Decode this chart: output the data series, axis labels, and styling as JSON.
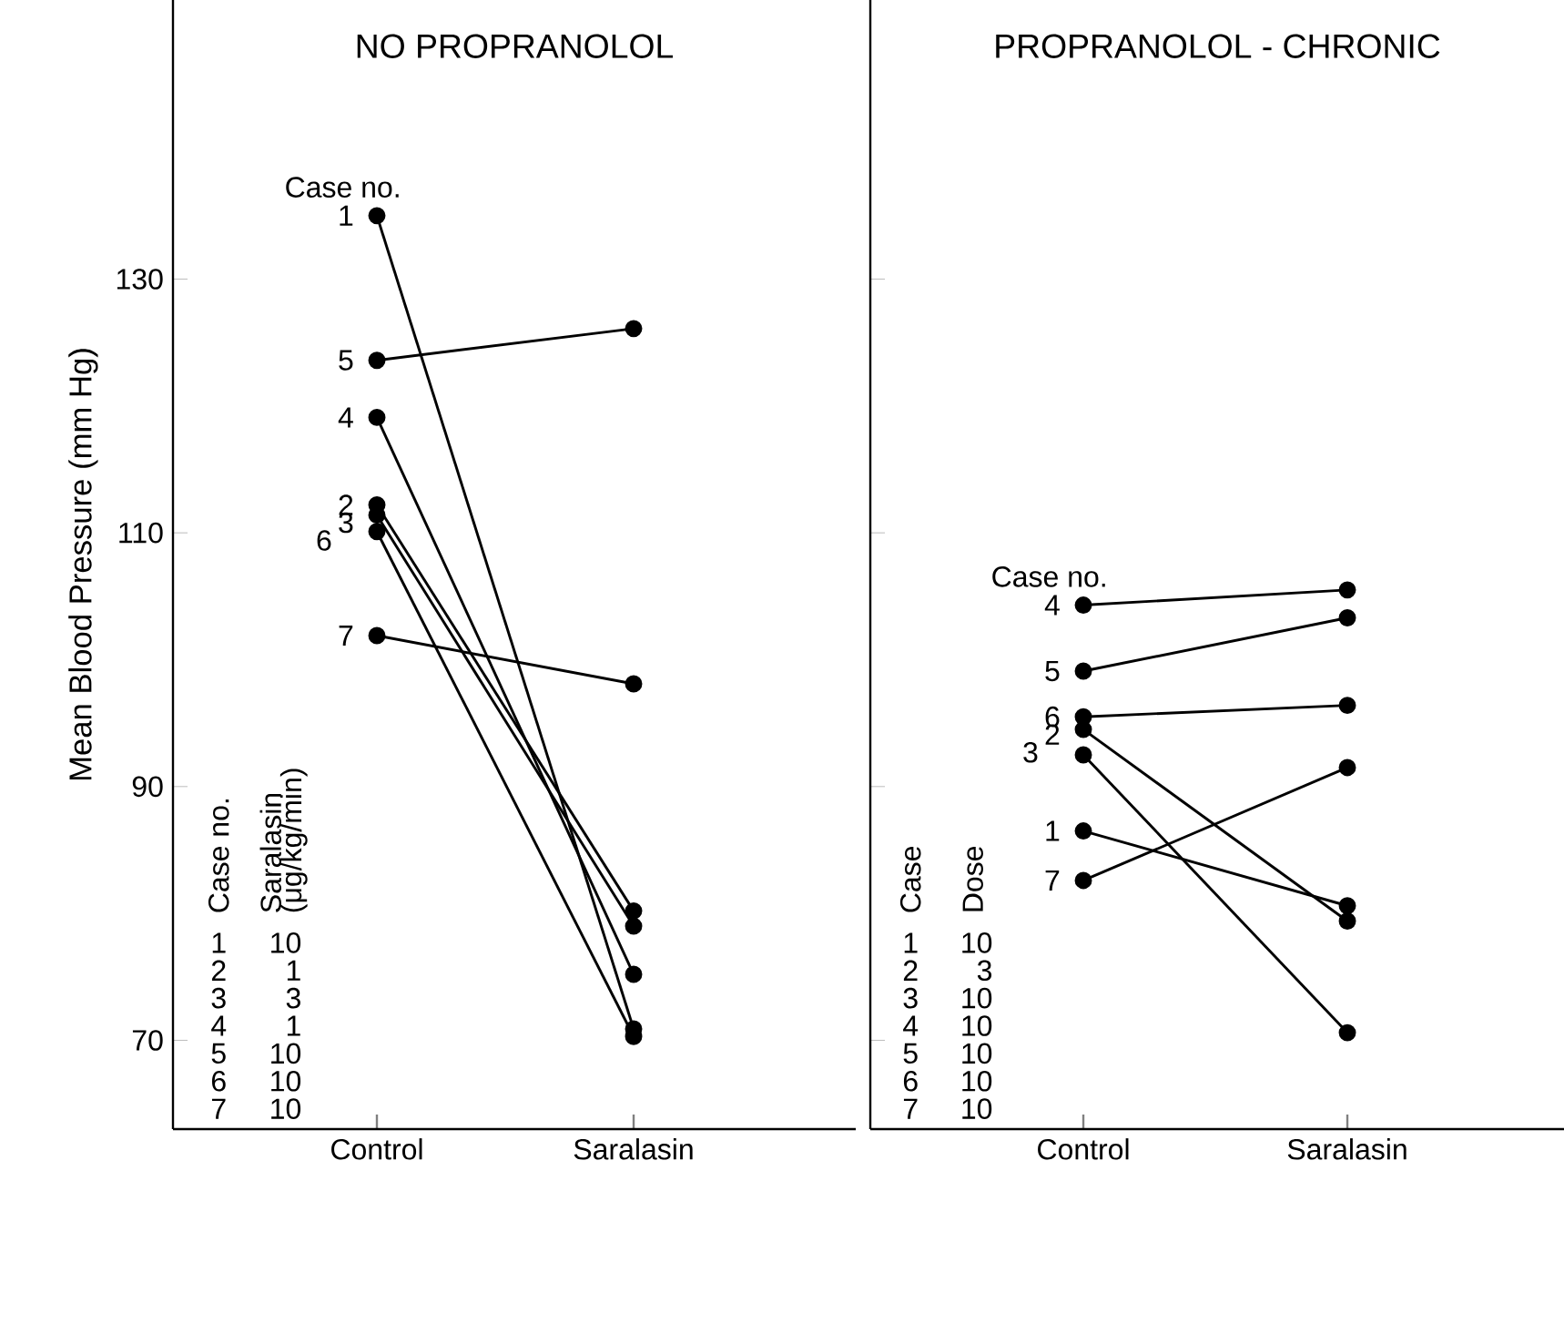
{
  "chart_data": [
    {
      "type": "line",
      "title": "NO PROPRANOLOL",
      "ylabel": "Mean Blood Pressure (mm Hg)",
      "categories": [
        "Control",
        "Saralasin"
      ],
      "ylim": [
        63,
        152
      ],
      "yticks": [
        70,
        90,
        110,
        130
      ],
      "marker": "circle",
      "line_style": "solid",
      "series": [
        {
          "name": "1",
          "color": "#000000",
          "values": [
            135.0,
            70.9
          ]
        },
        {
          "name": "2",
          "color": "#000000",
          "values": [
            112.2,
            80.2
          ]
        },
        {
          "name": "3",
          "color": "#000000",
          "values": [
            111.4,
            79.0
          ]
        },
        {
          "name": "4",
          "color": "#000000",
          "values": [
            119.1,
            75.2
          ]
        },
        {
          "name": "5",
          "color": "#000000",
          "values": [
            123.6,
            126.1
          ]
        },
        {
          "name": "6",
          "color": "#000000",
          "values": [
            110.1,
            70.3
          ]
        },
        {
          "name": "7",
          "color": "#000000",
          "values": [
            101.9,
            98.1
          ]
        }
      ],
      "annotations": [
        "Case no.",
        "Case no.",
        "Saralasin",
        "(μg/kg/min)",
        "1",
        "10",
        "2",
        "1",
        "3",
        "3",
        "4",
        "1",
        "5",
        "10",
        "6",
        "10",
        "7",
        "10"
      ]
    },
    {
      "type": "line",
      "title": "PROPRANOLOL - CHRONIC",
      "categories": [
        "Control",
        "Saralasin"
      ],
      "ylim": [
        63,
        152
      ],
      "yticks": [
        70,
        90,
        110,
        130
      ],
      "tick_labels": "x",
      "marker": "circle",
      "line_style": "solid",
      "series": [
        {
          "name": "1",
          "color": "#000000",
          "values": [
            86.5,
            80.6
          ]
        },
        {
          "name": "2",
          "color": "#000000",
          "values": [
            94.5,
            79.4
          ]
        },
        {
          "name": "3",
          "color": "#000000",
          "values": [
            92.5,
            70.6
          ]
        },
        {
          "name": "4",
          "color": "#000000",
          "values": [
            104.3,
            105.5
          ]
        },
        {
          "name": "5",
          "color": "#000000",
          "values": [
            99.1,
            103.3
          ]
        },
        {
          "name": "6",
          "color": "#000000",
          "values": [
            95.5,
            96.4
          ]
        },
        {
          "name": "7",
          "color": "#000000",
          "values": [
            82.6,
            91.5
          ]
        }
      ],
      "annotations": [
        "Case no.",
        "Case",
        "Dose",
        "1",
        "10",
        "2",
        "3",
        "3",
        "10",
        "4",
        "10",
        "5",
        "10",
        "6",
        "10",
        "7",
        "10"
      ]
    }
  ]
}
